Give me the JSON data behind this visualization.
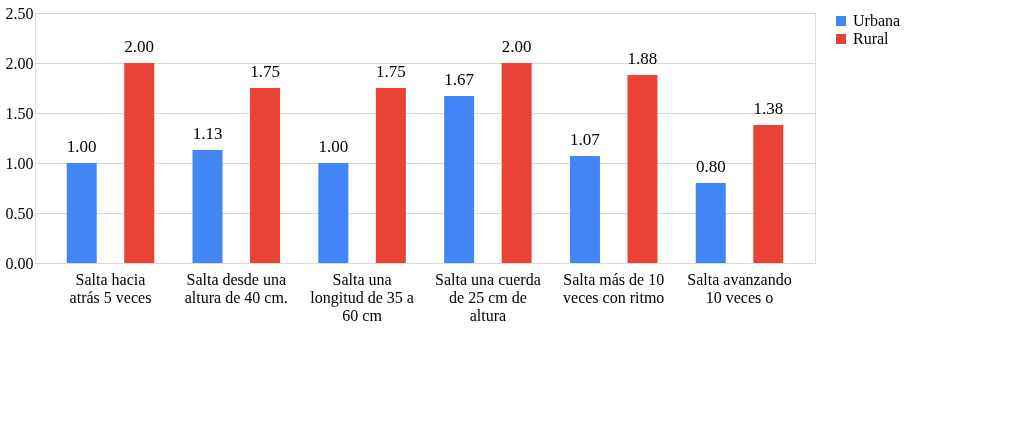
{
  "chart_data": {
    "type": "bar",
    "categories": [
      "Salta hacia atrás 5 veces",
      "Salta desde una altura de 40 cm.",
      "Salta una longitud de 35 a 60 cm",
      "Salta una cuerda de 25 cm de altura",
      "Salta más de 10 veces con ritmo",
      "Salta avanzando 10 veces o"
    ],
    "series": [
      {
        "name": "Urbana",
        "color": "#4285f4",
        "values": [
          1.0,
          1.13,
          1.0,
          1.67,
          1.07,
          0.8
        ],
        "value_labels": [
          "1.00",
          "1.13",
          "1.00",
          "1.67",
          "1.07",
          "0.80"
        ]
      },
      {
        "name": "Rural",
        "color": "#ea4335",
        "values": [
          2.0,
          1.75,
          1.75,
          2.0,
          1.88,
          1.38
        ],
        "value_labels": [
          "2.00",
          "1.75",
          "1.75",
          "2.00",
          "1.88",
          "1.38"
        ]
      }
    ],
    "ylim": [
      0,
      2.5
    ],
    "yticks": [
      {
        "value": 0,
        "label": "0.00"
      },
      {
        "value": 0.5,
        "label": "0.50"
      },
      {
        "value": 1,
        "label": "1.00"
      },
      {
        "value": 1.5,
        "label": "1.50"
      },
      {
        "value": 2,
        "label": "2.00"
      },
      {
        "value": 2.5,
        "label": "2.50"
      }
    ],
    "grid": "y",
    "legend": "right"
  }
}
